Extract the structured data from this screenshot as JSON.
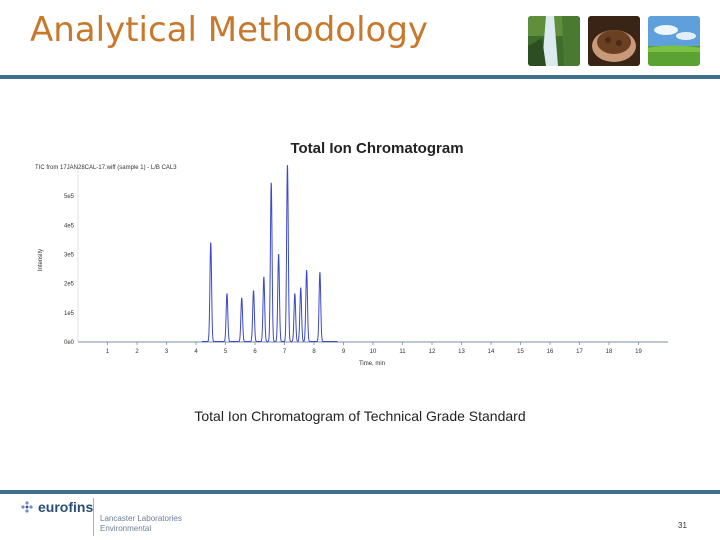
{
  "slide": {
    "title": "Analytical Methodology",
    "caption": "Total Ion Chromatogram of Technical Grade Standard",
    "page_number": "31",
    "brand": "eurofins",
    "lab_line1": "Lancaster Laboratories",
    "lab_line2": "Environmental",
    "thumbnails": [
      "waterfall-photo",
      "soil-in-hands-photo",
      "green-field-sky-photo"
    ]
  },
  "colors": {
    "title": "#c8782a",
    "rule": "#3e6f8e",
    "trace": "#3b49c9",
    "brand": "#2b4e78"
  },
  "chart_data": {
    "type": "line",
    "title": "Total Ion Chromatogram",
    "subtitle": "TIC from 17JAN28CAL-17.wiff (sample 1) - L/B CAL3",
    "xlabel": "Time, min",
    "ylabel": "Intensity",
    "xlim": [
      0,
      20
    ],
    "ylim": [
      0,
      600000
    ],
    "xticks": [
      1,
      2,
      3,
      4,
      5,
      6,
      7,
      8,
      9,
      10,
      11,
      12,
      13,
      14,
      15,
      16,
      17,
      18,
      19
    ],
    "yticks": [
      0,
      100000,
      200000,
      300000,
      400000,
      500000
    ],
    "ytick_labels": [
      "0e0",
      "1e5",
      "2e5",
      "3e5",
      "4e5",
      "5e5"
    ],
    "grid": false,
    "series": [
      {
        "peaks": [
          {
            "t": 4.5,
            "h": 340000
          },
          {
            "t": 5.05,
            "h": 165000
          },
          {
            "t": 5.55,
            "h": 150000
          },
          {
            "t": 5.95,
            "h": 175000
          },
          {
            "t": 6.3,
            "h": 222000
          },
          {
            "t": 6.55,
            "h": 545000
          },
          {
            "t": 6.8,
            "h": 300000
          },
          {
            "t": 7.1,
            "h": 605000
          },
          {
            "t": 7.35,
            "h": 165000
          },
          {
            "t": 7.55,
            "h": 185000
          },
          {
            "t": 7.75,
            "h": 245000
          },
          {
            "t": 8.2,
            "h": 238000
          }
        ]
      }
    ]
  }
}
